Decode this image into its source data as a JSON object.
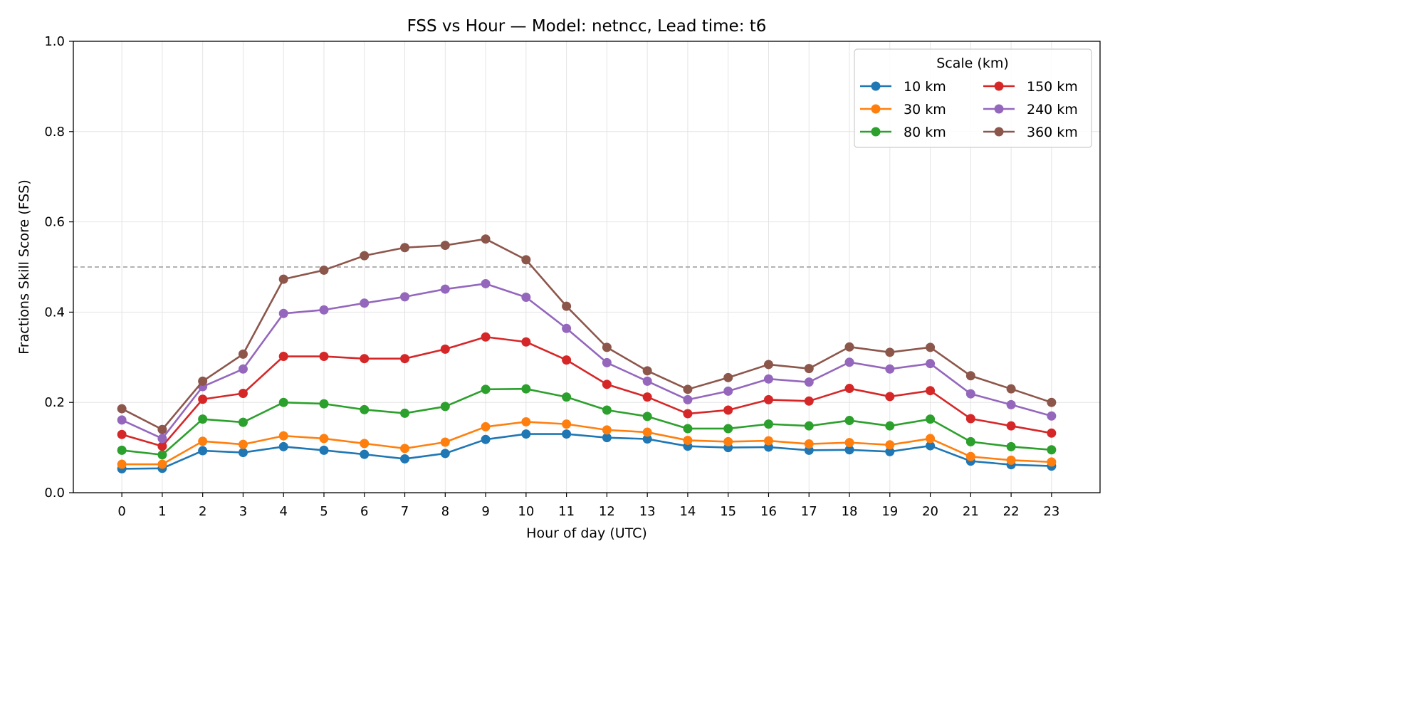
{
  "chart_data": {
    "type": "line",
    "title": "FSS vs Hour — Model: netncc, Lead time: t6",
    "xlabel": "Hour of day (UTC)",
    "ylabel": "Fractions Skill Score (FSS)",
    "xlim": [
      -1.2,
      24.2
    ],
    "ylim": [
      0.0,
      1.0
    ],
    "x": [
      0,
      1,
      2,
      3,
      4,
      5,
      6,
      7,
      8,
      9,
      10,
      11,
      12,
      13,
      14,
      15,
      16,
      17,
      18,
      19,
      20,
      21,
      22,
      23
    ],
    "x_ticks": [
      "0",
      "1",
      "2",
      "3",
      "4",
      "5",
      "6",
      "7",
      "8",
      "9",
      "10",
      "11",
      "12",
      "13",
      "14",
      "15",
      "16",
      "17",
      "18",
      "19",
      "20",
      "21",
      "22",
      "23"
    ],
    "y_ticks": [
      0.0,
      0.2,
      0.4,
      0.6,
      0.8,
      1.0
    ],
    "y_tick_labels": [
      "0.0",
      "0.2",
      "0.4",
      "0.6",
      "0.8",
      "1.0"
    ],
    "grid": true,
    "reference_line": {
      "y": 0.5,
      "style": "dashed",
      "color": "#999999"
    },
    "legend": {
      "title": "Scale (km)",
      "placement": "top-right",
      "columns": 2
    },
    "series": [
      {
        "name": "10 km",
        "color": "#1f77b4",
        "values": [
          0.053,
          0.054,
          0.093,
          0.089,
          0.102,
          0.094,
          0.085,
          0.075,
          0.087,
          0.118,
          0.13,
          0.13,
          0.122,
          0.119,
          0.103,
          0.1,
          0.101,
          0.094,
          0.095,
          0.091,
          0.104,
          0.07,
          0.062,
          0.059
        ]
      },
      {
        "name": "30 km",
        "color": "#ff7f0e",
        "values": [
          0.063,
          0.063,
          0.114,
          0.107,
          0.126,
          0.12,
          0.109,
          0.098,
          0.112,
          0.146,
          0.157,
          0.152,
          0.139,
          0.134,
          0.116,
          0.113,
          0.115,
          0.108,
          0.111,
          0.106,
          0.12,
          0.08,
          0.072,
          0.068
        ]
      },
      {
        "name": "80 km",
        "color": "#2ca02c",
        "values": [
          0.094,
          0.084,
          0.163,
          0.156,
          0.2,
          0.197,
          0.184,
          0.176,
          0.191,
          0.229,
          0.23,
          0.212,
          0.183,
          0.169,
          0.142,
          0.142,
          0.152,
          0.148,
          0.16,
          0.148,
          0.163,
          0.113,
          0.102,
          0.095
        ]
      },
      {
        "name": "150 km",
        "color": "#d62728",
        "values": [
          0.129,
          0.103,
          0.207,
          0.22,
          0.302,
          0.302,
          0.297,
          0.297,
          0.318,
          0.345,
          0.334,
          0.294,
          0.24,
          0.212,
          0.175,
          0.183,
          0.206,
          0.203,
          0.231,
          0.213,
          0.226,
          0.164,
          0.148,
          0.132
        ]
      },
      {
        "name": "240 km",
        "color": "#9467bd",
        "values": [
          0.161,
          0.12,
          0.235,
          0.274,
          0.397,
          0.405,
          0.42,
          0.434,
          0.451,
          0.463,
          0.433,
          0.364,
          0.288,
          0.247,
          0.206,
          0.225,
          0.252,
          0.245,
          0.289,
          0.274,
          0.286,
          0.219,
          0.195,
          0.17
        ]
      },
      {
        "name": "360 km",
        "color": "#8c564b",
        "values": [
          0.186,
          0.14,
          0.247,
          0.307,
          0.473,
          0.493,
          0.525,
          0.543,
          0.548,
          0.562,
          0.516,
          0.413,
          0.322,
          0.27,
          0.229,
          0.255,
          0.284,
          0.275,
          0.323,
          0.311,
          0.322,
          0.259,
          0.23,
          0.2
        ]
      }
    ]
  }
}
